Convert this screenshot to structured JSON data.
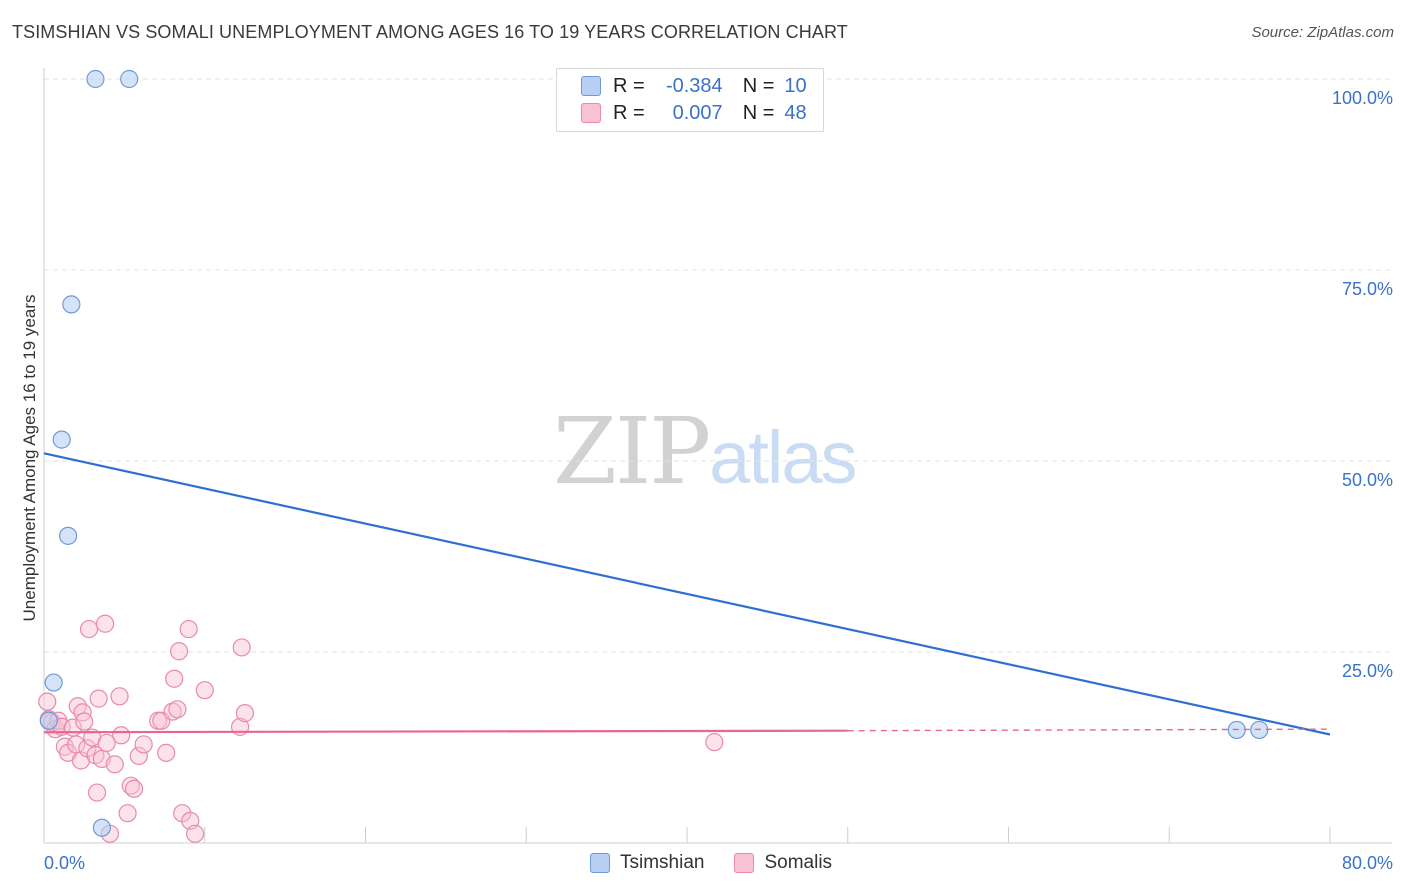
{
  "title": "TSIMSHIAN VS SOMALI UNEMPLOYMENT AMONG AGES 16 TO 19 YEARS CORRELATION CHART",
  "source": "Source: ZipAtlas.com",
  "watermark": {
    "zip": "ZIP",
    "atlas": "atlas"
  },
  "legend": {
    "rows": [
      {
        "r_label": "R =",
        "r_value": "-0.384",
        "n_label": "N =",
        "n_value": "10"
      },
      {
        "r_label": "R =",
        "r_value": "0.007",
        "n_label": "N =",
        "n_value": "48"
      }
    ]
  },
  "colors": {
    "tsimshian_fill": "#b7d0f3",
    "tsimshian_stroke": "#6f9ad8",
    "tsimshian_line": "#2f6fcf",
    "somali_fill": "#f8c2d3",
    "somali_stroke": "#e88aaa",
    "somali_line": "#e8678f",
    "axis_text": "#3b72c9",
    "grid": "#e2e2e2"
  },
  "chart_data": {
    "type": "scatter",
    "title": "TSIMSHIAN VS SOMALI UNEMPLOYMENT AMONG AGES 16 TO 19 YEARS CORRELATION CHART",
    "xlabel": "",
    "ylabel": "Unemployment Among Ages 16 to 19 years",
    "xlim": [
      0,
      80
    ],
    "ylim": [
      0,
      100
    ],
    "x_tick_labels": [
      "0.0%",
      "80.0%"
    ],
    "y_ticks": [
      25,
      50,
      75,
      100
    ],
    "y_tick_labels": [
      "25.0%",
      "50.0%",
      "75.0%",
      "100.0%"
    ],
    "grid": true,
    "series": [
      {
        "name": "Tsimshian",
        "points": [
          [
            3.2,
            100
          ],
          [
            5.3,
            100
          ],
          [
            1.7,
            70.5
          ],
          [
            1.1,
            52.8
          ],
          [
            1.5,
            40.2
          ],
          [
            0.6,
            21.0
          ],
          [
            0.3,
            16.0
          ],
          [
            3.6,
            2.0
          ],
          [
            74.2,
            14.8
          ],
          [
            75.6,
            14.8
          ]
        ],
        "trend": {
          "x": [
            0,
            80
          ],
          "y": [
            51.0,
            14.2
          ]
        }
      },
      {
        "name": "Somalis",
        "points": [
          [
            0.2,
            18.5
          ],
          [
            0.3,
            16.2
          ],
          [
            0.5,
            15.8
          ],
          [
            0.7,
            14.9
          ],
          [
            0.9,
            16.0
          ],
          [
            1.1,
            15.2
          ],
          [
            1.3,
            12.6
          ],
          [
            1.5,
            11.8
          ],
          [
            1.8,
            15.1
          ],
          [
            2.0,
            12.9
          ],
          [
            2.1,
            17.9
          ],
          [
            2.3,
            10.8
          ],
          [
            2.4,
            17.1
          ],
          [
            2.5,
            15.9
          ],
          [
            2.7,
            12.4
          ],
          [
            2.8,
            28.0
          ],
          [
            3.0,
            13.8
          ],
          [
            3.2,
            11.5
          ],
          [
            3.3,
            6.6
          ],
          [
            3.4,
            18.9
          ],
          [
            3.6,
            11.0
          ],
          [
            3.8,
            28.7
          ],
          [
            3.9,
            13.1
          ],
          [
            4.1,
            1.2
          ],
          [
            4.4,
            10.3
          ],
          [
            4.7,
            19.2
          ],
          [
            4.8,
            14.1
          ],
          [
            5.2,
            3.9
          ],
          [
            5.4,
            7.5
          ],
          [
            5.6,
            7.1
          ],
          [
            5.9,
            11.4
          ],
          [
            6.2,
            12.9
          ],
          [
            7.1,
            16.0
          ],
          [
            7.3,
            16.0
          ],
          [
            7.6,
            11.8
          ],
          [
            8.0,
            17.2
          ],
          [
            8.1,
            21.5
          ],
          [
            8.3,
            17.5
          ],
          [
            8.4,
            25.1
          ],
          [
            8.6,
            3.9
          ],
          [
            9.0,
            28.0
          ],
          [
            9.1,
            2.9
          ],
          [
            9.4,
            1.2
          ],
          [
            10.0,
            20.0
          ],
          [
            12.2,
            15.2
          ],
          [
            12.3,
            25.6
          ],
          [
            12.5,
            17.0
          ],
          [
            41.7,
            13.2
          ]
        ],
        "trend": {
          "x": [
            0,
            50
          ],
          "y": [
            14.5,
            14.7
          ]
        },
        "trend_dashed": {
          "x": [
            50,
            80
          ],
          "y": [
            14.7,
            14.9
          ]
        }
      }
    ]
  },
  "bottom_legend": [
    {
      "label": "Tsimshian"
    },
    {
      "label": "Somalis"
    }
  ]
}
